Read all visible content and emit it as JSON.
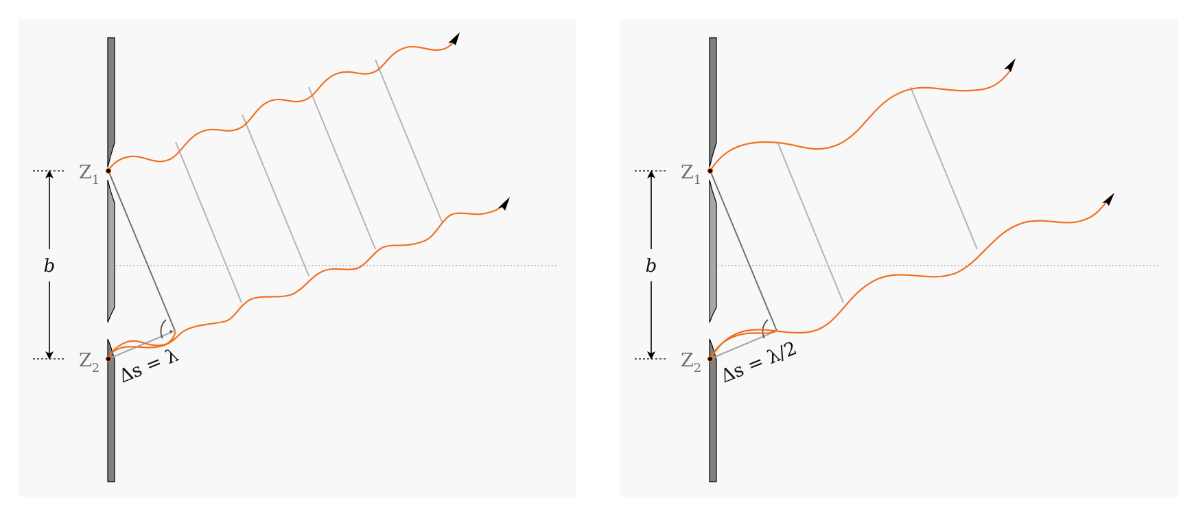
{
  "panels": [
    {
      "id": "left",
      "slit1_label": "Z",
      "slit1_sub": "1",
      "slit2_label": "Z",
      "slit2_sub": "2",
      "distance_label": "b",
      "path_difference_label": "Δs = λ",
      "wavelength_ratio": 1
    },
    {
      "id": "right",
      "slit1_label": "Z",
      "slit1_sub": "1",
      "slit2_label": "Z",
      "slit2_sub": "2",
      "distance_label": "b",
      "path_difference_label": "Δs = λ/2",
      "wavelength_ratio": 2
    }
  ],
  "colors": {
    "wave": "#f07020",
    "barrier": "#808080",
    "barrier_light": "#a8a8a8",
    "wavefront": "#b4b4b4",
    "background": "#f8f8f8"
  }
}
